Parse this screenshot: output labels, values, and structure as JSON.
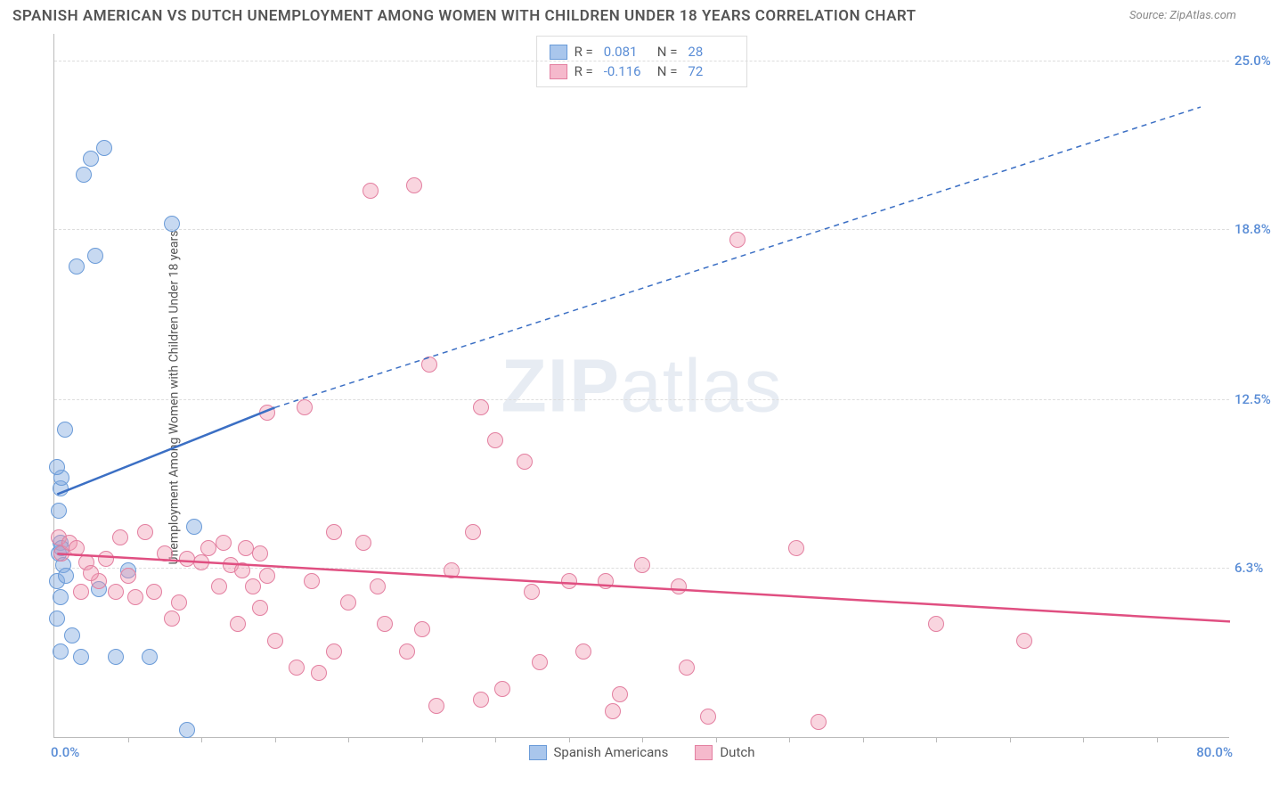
{
  "chart": {
    "type": "scatter",
    "title": "SPANISH AMERICAN VS DUTCH UNEMPLOYMENT AMONG WOMEN WITH CHILDREN UNDER 18 YEARS CORRELATION CHART",
    "source": "Source: ZipAtlas.com",
    "y_axis_label": "Unemployment Among Women with Children Under 18 years",
    "watermark": "ZIPatlas",
    "background_color": "#ffffff",
    "grid_color": "#dddddd",
    "axis_color": "#bbbbbb",
    "tick_label_color": "#5a8dd6",
    "title_color": "#555555",
    "title_fontsize": 17,
    "label_fontsize": 14,
    "tick_fontsize": 15,
    "xlim": [
      0,
      80
    ],
    "ylim": [
      0,
      26
    ],
    "x_min_label": "0.0%",
    "x_max_label": "80.0%",
    "y_ticks": [
      {
        "value": 6.3,
        "label": "6.3%"
      },
      {
        "value": 12.5,
        "label": "12.5%"
      },
      {
        "value": 18.8,
        "label": "18.8%"
      },
      {
        "value": 25.0,
        "label": "25.0%"
      }
    ],
    "x_tick_positions": [
      5,
      10,
      15,
      20,
      25,
      30,
      35,
      40,
      45,
      50,
      55,
      60,
      65,
      70,
      75
    ],
    "series": [
      {
        "name": "Spanish Americans",
        "color_fill": "rgba(130, 170, 224, 0.45)",
        "color_stroke": "#6a9bd8",
        "swatch_fill": "#a9c6ec",
        "swatch_border": "#6a9bd8",
        "marker_size": 18,
        "r_value": "0.081",
        "n_value": "28",
        "trend": {
          "color": "#3b6fc4",
          "width": 2.5,
          "x1": 0.2,
          "y1": 9.0,
          "x_solid_end": 15.0,
          "y_solid_end": 12.2,
          "x2": 78.0,
          "y2": 23.3,
          "dash_pattern": "6,5"
        },
        "points": [
          {
            "x": 0.3,
            "y": 6.8
          },
          {
            "x": 0.4,
            "y": 7.2
          },
          {
            "x": 0.5,
            "y": 7.0
          },
          {
            "x": 0.2,
            "y": 5.8
          },
          {
            "x": 0.4,
            "y": 5.2
          },
          {
            "x": 0.6,
            "y": 6.4
          },
          {
            "x": 0.8,
            "y": 6.0
          },
          {
            "x": 0.3,
            "y": 8.4
          },
          {
            "x": 0.4,
            "y": 9.2
          },
          {
            "x": 0.5,
            "y": 9.6
          },
          {
            "x": 0.2,
            "y": 10.0
          },
          {
            "x": 0.7,
            "y": 11.4
          },
          {
            "x": 1.2,
            "y": 3.8
          },
          {
            "x": 1.8,
            "y": 3.0
          },
          {
            "x": 0.4,
            "y": 3.2
          },
          {
            "x": 4.2,
            "y": 3.0
          },
          {
            "x": 6.5,
            "y": 3.0
          },
          {
            "x": 2.8,
            "y": 17.8
          },
          {
            "x": 1.5,
            "y": 17.4
          },
          {
            "x": 2.5,
            "y": 21.4
          },
          {
            "x": 3.4,
            "y": 21.8
          },
          {
            "x": 2.0,
            "y": 20.8
          },
          {
            "x": 8.0,
            "y": 19.0
          },
          {
            "x": 9.5,
            "y": 7.8
          },
          {
            "x": 5.0,
            "y": 6.2
          },
          {
            "x": 3.0,
            "y": 5.5
          },
          {
            "x": 9.0,
            "y": 0.3
          },
          {
            "x": 0.2,
            "y": 4.4
          }
        ]
      },
      {
        "name": "Dutch",
        "color_fill": "rgba(240, 150, 175, 0.40)",
        "color_stroke": "#e37fa0",
        "swatch_fill": "#f5b9cc",
        "swatch_border": "#e37fa0",
        "marker_size": 18,
        "r_value": "-0.116",
        "n_value": "72",
        "trend": {
          "color": "#e04f81",
          "width": 2.5,
          "x1": 0.2,
          "y1": 6.8,
          "x_solid_end": 80.0,
          "y_solid_end": 4.3,
          "x2": 80.0,
          "y2": 4.3,
          "dash_pattern": ""
        },
        "points": [
          {
            "x": 0.3,
            "y": 7.4
          },
          {
            "x": 0.5,
            "y": 6.8
          },
          {
            "x": 1.0,
            "y": 7.2
          },
          {
            "x": 1.5,
            "y": 7.0
          },
          {
            "x": 2.2,
            "y": 6.5
          },
          {
            "x": 1.8,
            "y": 5.4
          },
          {
            "x": 3.0,
            "y": 5.8
          },
          {
            "x": 3.5,
            "y": 6.6
          },
          {
            "x": 2.5,
            "y": 6.1
          },
          {
            "x": 4.2,
            "y": 5.4
          },
          {
            "x": 5.0,
            "y": 6.0
          },
          {
            "x": 4.5,
            "y": 7.4
          },
          {
            "x": 5.5,
            "y": 5.2
          },
          {
            "x": 6.2,
            "y": 7.6
          },
          {
            "x": 6.8,
            "y": 5.4
          },
          {
            "x": 7.5,
            "y": 6.8
          },
          {
            "x": 8.5,
            "y": 5.0
          },
          {
            "x": 9.0,
            "y": 6.6
          },
          {
            "x": 8.0,
            "y": 4.4
          },
          {
            "x": 10.0,
            "y": 6.5
          },
          {
            "x": 10.5,
            "y": 7.0
          },
          {
            "x": 11.2,
            "y": 5.6
          },
          {
            "x": 12.0,
            "y": 6.4
          },
          {
            "x": 12.8,
            "y": 6.2
          },
          {
            "x": 11.5,
            "y": 7.2
          },
          {
            "x": 13.0,
            "y": 7.0
          },
          {
            "x": 14.0,
            "y": 6.8
          },
          {
            "x": 14.5,
            "y": 6.0
          },
          {
            "x": 13.5,
            "y": 5.6
          },
          {
            "x": 14.0,
            "y": 4.8
          },
          {
            "x": 12.5,
            "y": 4.2
          },
          {
            "x": 15.0,
            "y": 3.6
          },
          {
            "x": 14.5,
            "y": 12.0
          },
          {
            "x": 17.0,
            "y": 12.2
          },
          {
            "x": 16.5,
            "y": 2.6
          },
          {
            "x": 17.5,
            "y": 5.8
          },
          {
            "x": 18.0,
            "y": 2.4
          },
          {
            "x": 19.0,
            "y": 7.6
          },
          {
            "x": 19.0,
            "y": 3.2
          },
          {
            "x": 20.0,
            "y": 5.0
          },
          {
            "x": 21.0,
            "y": 7.2
          },
          {
            "x": 21.5,
            "y": 20.2
          },
          {
            "x": 22.0,
            "y": 5.6
          },
          {
            "x": 22.5,
            "y": 4.2
          },
          {
            "x": 24.0,
            "y": 3.2
          },
          {
            "x": 24.5,
            "y": 20.4
          },
          {
            "x": 25.0,
            "y": 4.0
          },
          {
            "x": 25.5,
            "y": 13.8
          },
          {
            "x": 26.0,
            "y": 1.2
          },
          {
            "x": 27.0,
            "y": 6.2
          },
          {
            "x": 28.5,
            "y": 7.6
          },
          {
            "x": 29.0,
            "y": 12.2
          },
          {
            "x": 29.0,
            "y": 1.4
          },
          {
            "x": 30.0,
            "y": 11.0
          },
          {
            "x": 30.5,
            "y": 1.8
          },
          {
            "x": 32.0,
            "y": 10.2
          },
          {
            "x": 32.5,
            "y": 5.4
          },
          {
            "x": 33.0,
            "y": 2.8
          },
          {
            "x": 35.0,
            "y": 5.8
          },
          {
            "x": 36.0,
            "y": 3.2
          },
          {
            "x": 37.5,
            "y": 5.8
          },
          {
            "x": 38.0,
            "y": 1.0
          },
          {
            "x": 38.5,
            "y": 1.6
          },
          {
            "x": 40.0,
            "y": 6.4
          },
          {
            "x": 42.5,
            "y": 5.6
          },
          {
            "x": 43.0,
            "y": 2.6
          },
          {
            "x": 44.5,
            "y": 0.8
          },
          {
            "x": 46.5,
            "y": 18.4
          },
          {
            "x": 50.5,
            "y": 7.0
          },
          {
            "x": 52.0,
            "y": 0.6
          },
          {
            "x": 60.0,
            "y": 4.2
          },
          {
            "x": 66.0,
            "y": 3.6
          }
        ]
      }
    ],
    "legend_top_labels": {
      "r_prefix": "R =",
      "n_prefix": "N ="
    },
    "legend_bottom": [
      "Spanish Americans",
      "Dutch"
    ]
  }
}
